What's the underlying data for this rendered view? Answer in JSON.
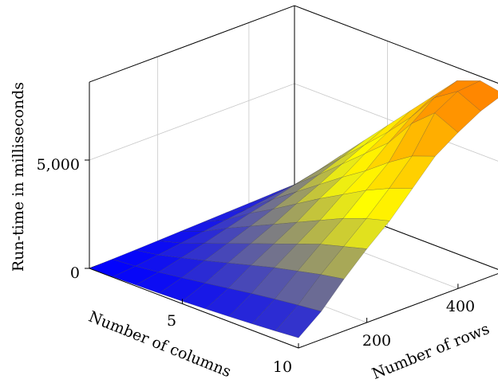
{
  "chart_data": {
    "type": "surface",
    "xlabel": "Number of columns",
    "ylabel": "Number of rows",
    "zlabel": "Run-time in milliseconds",
    "x_ticks": [
      "5",
      "10"
    ],
    "y_ticks": [
      "200",
      "400"
    ],
    "z_ticks": [
      "0",
      "5,000"
    ],
    "grid": true,
    "colormap": [
      "#0000ff",
      "#ffff00",
      "#ff8000"
    ],
    "zlim": [
      0,
      8600
    ],
    "columns": [
      1,
      2,
      3,
      4,
      5,
      6,
      7,
      8,
      9,
      10
    ],
    "rows": [
      50,
      100,
      150,
      200,
      250,
      300,
      350,
      400,
      450,
      500
    ],
    "runtime_ms": [
      [
        0,
        20,
        50,
        80,
        120,
        170,
        230,
        300,
        380,
        470
      ],
      [
        30,
        120,
        250,
        400,
        560,
        730,
        900,
        1050,
        1180,
        1300
      ],
      [
        60,
        250,
        520,
        800,
        1100,
        1400,
        1700,
        1950,
        2200,
        2400
      ],
      [
        100,
        400,
        800,
        1200,
        1600,
        2000,
        2400,
        2800,
        3100,
        3400
      ],
      [
        140,
        550,
        1100,
        1600,
        2100,
        2600,
        3100,
        3600,
        4000,
        4300
      ],
      [
        180,
        700,
        1400,
        2000,
        2650,
        3300,
        3900,
        4500,
        5000,
        5400
      ],
      [
        220,
        850,
        1650,
        2400,
        3150,
        3900,
        4600,
        5400,
        6100,
        6500
      ],
      [
        260,
        1000,
        1950,
        2800,
        3700,
        4600,
        5500,
        6800,
        7700,
        7200
      ],
      [
        300,
        1150,
        2200,
        3200,
        4200,
        5200,
        6300,
        7600,
        8300,
        7800
      ],
      [
        340,
        1300,
        2500,
        3600,
        4700,
        5800,
        6900,
        8000,
        8400,
        8200
      ]
    ]
  }
}
